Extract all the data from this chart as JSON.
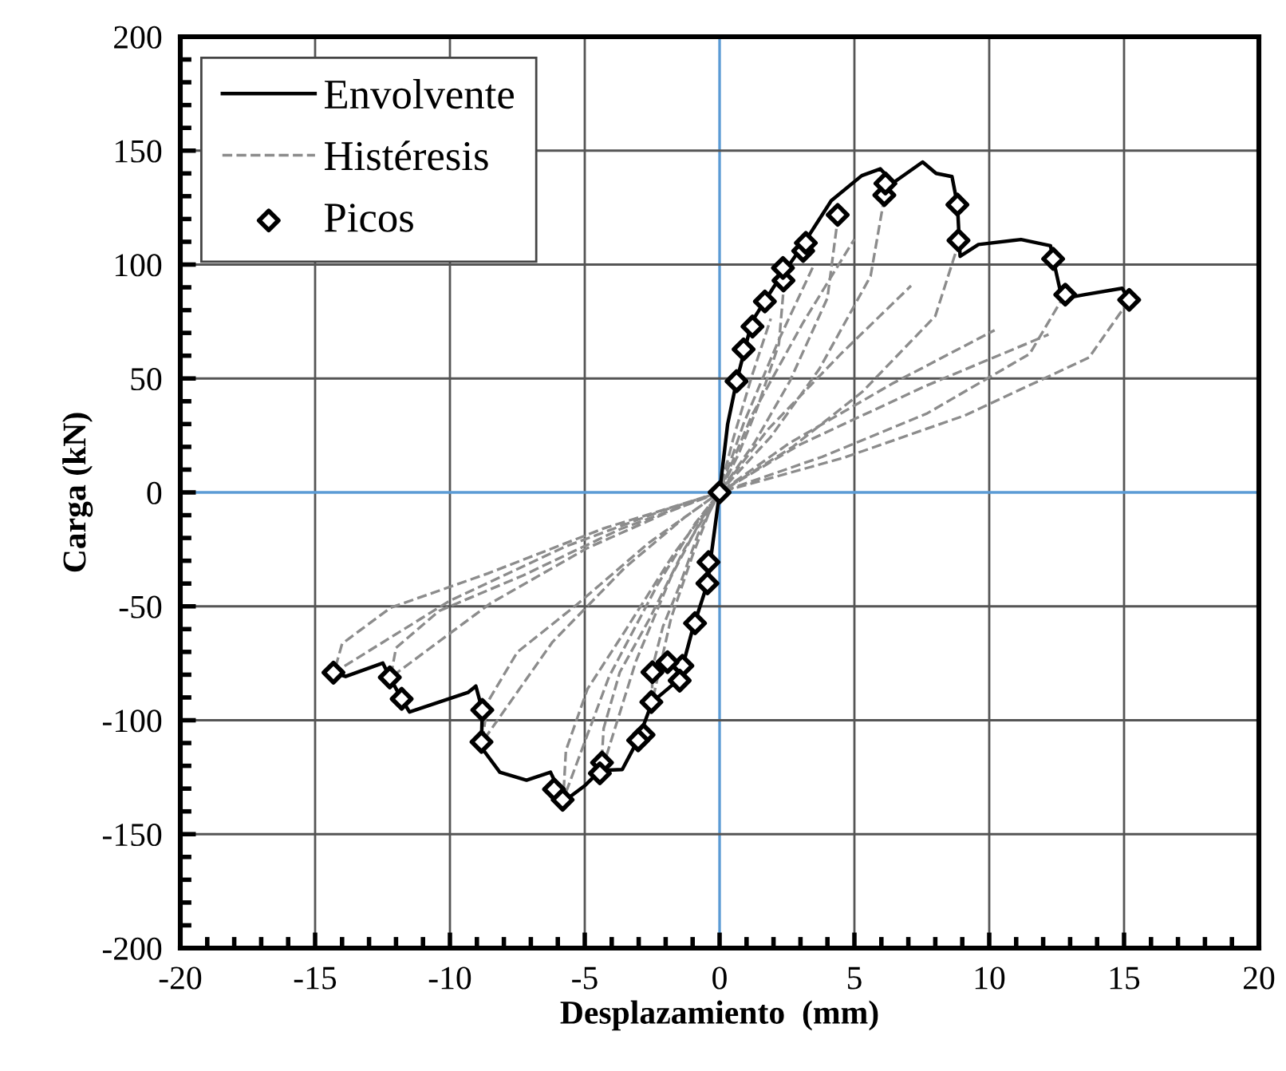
{
  "chart_data": {
    "type": "line",
    "xlabel": "Desplazamiento  (mm)",
    "ylabel": "Carga (kN)",
    "xlim": [
      -20,
      20
    ],
    "xticks": [
      -20,
      -15,
      -10,
      -5,
      0,
      5,
      10,
      15,
      20
    ],
    "ylim": [
      -200,
      200
    ],
    "yticks": [
      -200,
      -150,
      -100,
      -50,
      0,
      50,
      100,
      150,
      200
    ],
    "grid": true,
    "legend": "top left",
    "series": [
      {
        "name": "Envolvente",
        "color": "#000000",
        "line_style": "solid",
        "x": [
          -14.32,
          -13.87,
          -12.49,
          -12.23,
          -11.79,
          -11.5,
          -9.33,
          -9.04,
          -8.8,
          -8.83,
          -8.74,
          -8.15,
          -7.16,
          -6.27,
          -5.76,
          -4.99,
          -4.42,
          -3.61,
          -3.0,
          -2.5,
          -1.5,
          -1.0,
          -0.45,
          0,
          0.3,
          0.63,
          1.2,
          2.0,
          3.0,
          4.14,
          5.27,
          5.96,
          6.45,
          7.53,
          8.03,
          8.62,
          8.82,
          8.92,
          9.6,
          11.18,
          12.27,
          12.37,
          12.7,
          13.55,
          14.93,
          15.19
        ],
        "values": [
          -79.1,
          -80.8,
          -74.9,
          -81.2,
          -90.6,
          -96.4,
          -87.8,
          -85,
          -95.5,
          -109.5,
          -113.4,
          -122.8,
          -126.3,
          -122.8,
          -135.5,
          -128.6,
          -122,
          -121.6,
          -108,
          -92,
          -82,
          -60,
          -40,
          0,
          30,
          48.8,
          75,
          90,
          107,
          128,
          139,
          142,
          136,
          145,
          140,
          138.6,
          126.3,
          103.6,
          108.8,
          111,
          108.3,
          102.5,
          85,
          86.8,
          89.6,
          84.5
        ]
      },
      {
        "name": "Histéresis",
        "color": "#8c8c8c",
        "line_style": "dashed",
        "x": [
          15.2,
          13.7,
          9.1,
          4.6,
          0,
          -4.3,
          -8.6,
          -12.2,
          -14.0,
          -14.3,
          -10.0,
          -5.7,
          -2.1,
          0,
          3.0,
          7.6,
          12.2
        ],
        "values": [
          84.5,
          59.2,
          33.8,
          15.2,
          0,
          -15.8,
          -35.6,
          -50.6,
          -66.4,
          -79.1,
          -47.5,
          -23.7,
          -7.9,
          0,
          21.1,
          46.5,
          69.3
        ]
      },
      {
        "color": "#8c8c8c",
        "line_style": "dashed",
        "x": [
          12.8,
          11.5,
          7.7,
          3.8,
          0,
          -3.7,
          -7.3,
          -10.4,
          -12.0,
          -12.2,
          -8.5,
          -4.9,
          -1.8,
          0,
          2.6,
          6.4,
          10.2
        ],
        "values": [
          86.8,
          60.8,
          34.7,
          15.6,
          0,
          -16.2,
          -36.5,
          -52.0,
          -68.2,
          -81.2,
          -48.7,
          -24.4,
          -8.1,
          0,
          21.7,
          47.7,
          71.2
        ]
      },
      {
        "color": "#8c8c8c",
        "line_style": "dashed",
        "x": [
          8.9,
          8.0,
          5.3,
          2.7,
          0,
          -2.6,
          -5.3,
          -7.5,
          -8.6,
          -8.8,
          -6.2,
          -3.5,
          -1.3,
          0,
          1.8,
          4.5,
          7.1
        ],
        "values": [
          110.6,
          77.4,
          44.2,
          19.9,
          0,
          -21.9,
          -49.3,
          -70.1,
          -92.0,
          -109.5,
          -65.7,
          -32.9,
          -11.0,
          0,
          27.7,
          60.8,
          90.7
        ]
      },
      {
        "color": "#8c8c8c",
        "line_style": "dashed",
        "x": [
          6.2,
          5.6,
          3.7,
          1.9,
          0,
          -1.7,
          -3.5,
          -4.9,
          -5.7,
          -5.8,
          -4.1,
          -2.3,
          -0.9,
          0,
          1.2,
          3.1,
          5.0
        ],
        "values": [
          135.6,
          94.9,
          54.2,
          24.4,
          0,
          -27.0,
          -60.7,
          -86.3,
          -113.3,
          -134.9,
          -80.9,
          -40.5,
          -13.5,
          0,
          33.9,
          74.6,
          111.2
        ]
      },
      {
        "color": "#8c8c8c",
        "line_style": "dashed",
        "x": [
          4.4,
          4.0,
          2.6,
          1.3,
          0,
          -1.3,
          -2.6,
          -3.7,
          -4.3,
          -4.4,
          -3.1,
          -1.8,
          -0.7,
          0,
          0.9,
          2.2,
          3.5
        ],
        "values": [
          121.8,
          85.3,
          48.7,
          21.9,
          0,
          -24.7,
          -55.5,
          -78.9,
          -103.6,
          -123.3,
          -74.0,
          -37.0,
          -12.3,
          0,
          30.5,
          67.0,
          99.9
        ]
      },
      {
        "color": "#8c8c8c",
        "line_style": "dashed",
        "x": [
          2.4,
          2.2,
          1.4,
          0.7,
          0,
          -0.8,
          -1.5,
          -2.1,
          -2.5,
          -2.5,
          -1.8,
          -1.0,
          -0.4,
          0,
          0.5,
          1.2,
          1.9
        ],
        "values": [
          93,
          65.1,
          37.2,
          16.7,
          0,
          -18.4,
          -41.4,
          -58.9,
          -77.3,
          -92,
          -55.2,
          -27.6,
          -9.2,
          0,
          23.3,
          51.2,
          76.3
        ]
      },
      {
        "name": "Picos",
        "type": "scatter",
        "color": "#000000",
        "marker": "diamond",
        "x": [
          0,
          0.63,
          0.89,
          1.22,
          1.68,
          2.37,
          2.35,
          3.1,
          3.2,
          4.38,
          6.11,
          6.15,
          8.82,
          8.86,
          12.37,
          12.82,
          15.19,
          -0.41,
          -0.45,
          -0.91,
          -1.38,
          -1.93,
          -1.48,
          -2.49,
          -2.53,
          -2.82,
          -3.02,
          -4.36,
          -4.44,
          -6.14,
          -5.82,
          -8.8,
          -8.83,
          -11.79,
          -12.23,
          -14.32
        ],
        "values": [
          0,
          48.8,
          62.8,
          72.8,
          83.8,
          93,
          98.5,
          106,
          109.5,
          121.8,
          130.5,
          135.6,
          126.3,
          110.6,
          102.5,
          86.8,
          84.5,
          -30.6,
          -39.9,
          -57.4,
          -76.1,
          -74.5,
          -82.6,
          -78.9,
          -92,
          -106.4,
          -108.8,
          -118.6,
          -123.3,
          -130.3,
          -134.9,
          -95.5,
          -109.5,
          -90.6,
          -81.2,
          -79.1
        ]
      }
    ]
  }
}
